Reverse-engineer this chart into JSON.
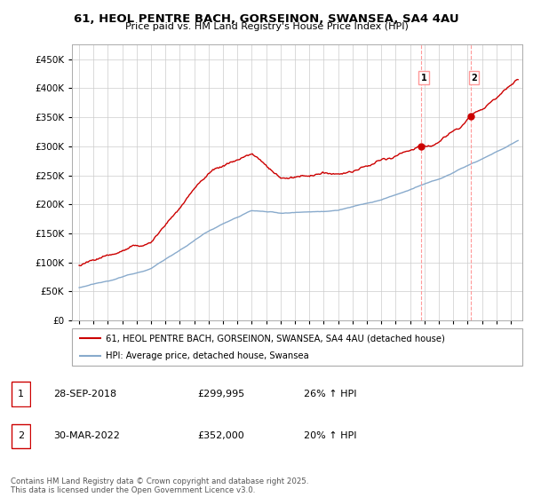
{
  "title_line1": "61, HEOL PENTRE BACH, GORSEINON, SWANSEA, SA4 4AU",
  "title_line2": "Price paid vs. HM Land Registry's House Price Index (HPI)",
  "background_color": "#ffffff",
  "grid_color": "#cccccc",
  "red_line_color": "#cc0000",
  "blue_line_color": "#88aacc",
  "marker1_date_x": 2018.74,
  "marker1_value": 299995,
  "marker2_date_x": 2022.24,
  "marker2_value": 352000,
  "legend_line1": "61, HEOL PENTRE BACH, GORSEINON, SWANSEA, SA4 4AU (detached house)",
  "legend_line2": "HPI: Average price, detached house, Swansea",
  "table_row1": [
    "1",
    "28-SEP-2018",
    "£299,995",
    "26% ↑ HPI"
  ],
  "table_row2": [
    "2",
    "30-MAR-2022",
    "£352,000",
    "20% ↑ HPI"
  ],
  "footnote": "Contains HM Land Registry data © Crown copyright and database right 2025.\nThis data is licensed under the Open Government Licence v3.0.",
  "ylim": [
    0,
    475000
  ],
  "yticks": [
    0,
    50000,
    100000,
    150000,
    200000,
    250000,
    300000,
    350000,
    400000,
    450000
  ],
  "xlim_start": 1994.5,
  "xlim_end": 2025.8,
  "vline_color": "#ff9999"
}
